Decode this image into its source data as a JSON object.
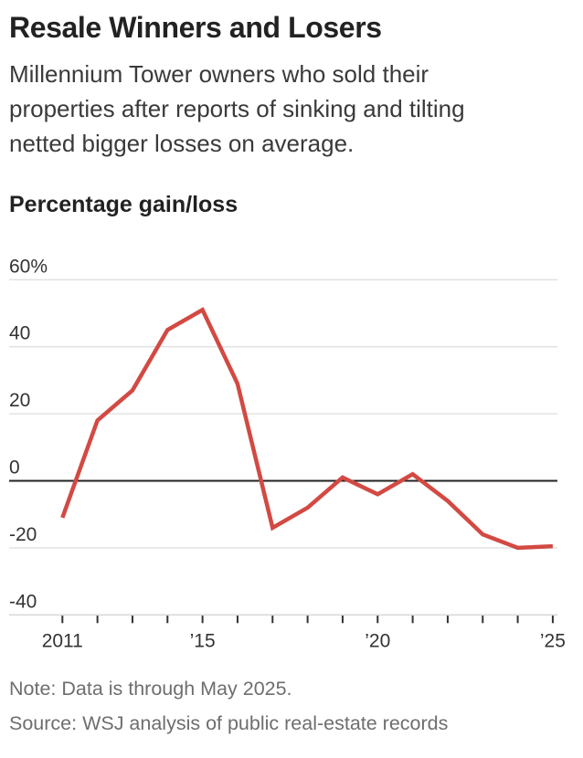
{
  "header": {
    "title": "Resale Winners and Losers",
    "subtitle_lines": [
      "Millennium Tower owners who sold their",
      "properties after reports of sinking and tilting",
      "netted bigger losses on average."
    ]
  },
  "chart": {
    "section_label": "Percentage gain/loss"
  },
  "chart_data": {
    "type": "line",
    "title": "Percentage gain/loss",
    "x": [
      2011,
      2012,
      2013,
      2014,
      2015,
      2016,
      2017,
      2018,
      2019,
      2020,
      2021,
      2022,
      2023,
      2024,
      2025
    ],
    "values": [
      -11,
      18,
      27,
      45,
      51,
      29,
      -14,
      -8,
      1,
      -4,
      2,
      -6,
      -16,
      -20,
      -19.5
    ],
    "xlabel": "",
    "ylabel": "Percentage gain/loss",
    "ylim": [
      -40,
      60
    ],
    "xlim": [
      2011,
      2025
    ],
    "grid": true,
    "legend": false,
    "y_ticks": [
      60,
      40,
      20,
      0,
      -20,
      -40
    ],
    "y_tick_labels": [
      "60%",
      "40",
      "20",
      "0",
      "-20",
      "-40"
    ],
    "x_tick_years": [
      2011,
      2012,
      2013,
      2014,
      2015,
      2016,
      2017,
      2018,
      2019,
      2020,
      2021,
      2022,
      2023,
      2024,
      2025
    ],
    "x_tick_labels": [
      {
        "year": 2011,
        "label": "2011"
      },
      {
        "year": 2015,
        "label": "’15"
      },
      {
        "year": 2020,
        "label": "’20"
      },
      {
        "year": 2025,
        "label": "’25"
      }
    ],
    "colors": {
      "line": "#d24a43",
      "zero_line": "#222222",
      "gridline": "#e0e0e0",
      "axis_baseline": "#d9d9d9",
      "tick": "#333333",
      "tick_label": "#333333"
    }
  },
  "footer": {
    "note": "Note: Data is through May 2025.",
    "source": "Source: WSJ analysis of public real-estate records"
  }
}
